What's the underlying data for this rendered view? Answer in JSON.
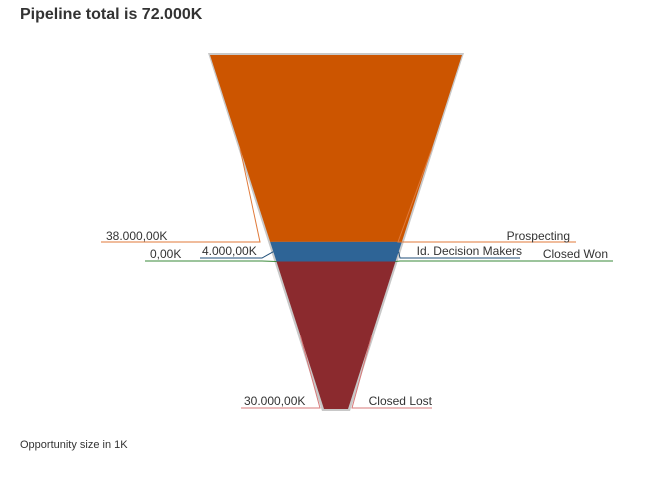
{
  "title": "Pipeline total is 72.000K",
  "footnote": "Opportunity size in 1K",
  "chart_data": {
    "type": "funnel",
    "stages": [
      {
        "name": "Prospecting",
        "value": 38000,
        "value_label": "38.000,00K",
        "color": "#cc5500",
        "line_color": "#e07a3a"
      },
      {
        "name": "Id. Decision Makers",
        "value": 4000,
        "value_label": "4.000,00K",
        "color": "#2e6496",
        "line_color": "#1f4e78"
      },
      {
        "name": "Closed Won",
        "value": 0,
        "value_label": "0,00K",
        "color": "#3a8a3a",
        "line_color": "#3a8a3a"
      },
      {
        "name": "Closed Lost",
        "value": 30000,
        "value_label": "30.000,00K",
        "color": "#8b2a2e",
        "line_color": "#d77a7a"
      }
    ],
    "border_color": "#c8c8c8"
  }
}
